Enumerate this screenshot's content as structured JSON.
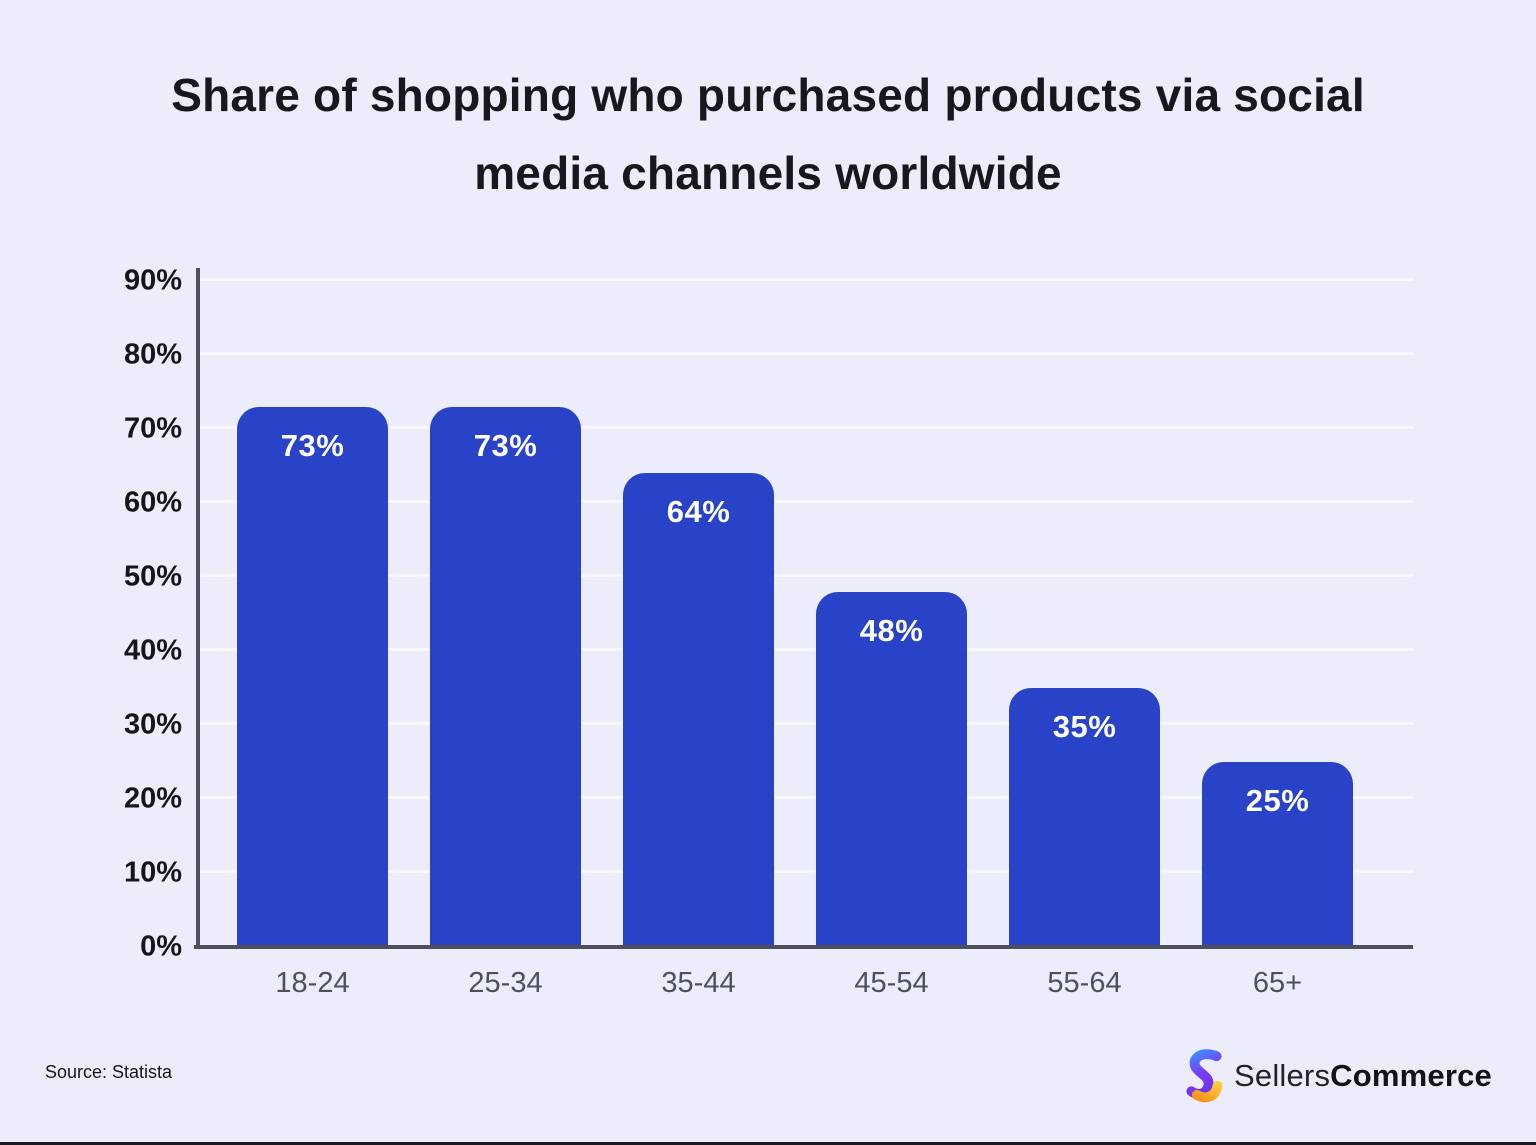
{
  "header": {
    "title_line1": "Share of shopping who purchased products via social",
    "title_line2": "media channels worldwide"
  },
  "chart_data": {
    "type": "bar",
    "title": "Share of shopping who purchased products via social media channels worldwide",
    "categories": [
      "18-24",
      "25-34",
      "35-44",
      "45-54",
      "55-64",
      "65+"
    ],
    "values": [
      73,
      73,
      64,
      48,
      35,
      25
    ],
    "value_labels": [
      "73%",
      "73%",
      "64%",
      "48%",
      "35%",
      "25%"
    ],
    "xlabel": "",
    "ylabel": "",
    "ylim": [
      0,
      90
    ],
    "y_tick_step": 10,
    "y_tick_labels": [
      "0%",
      "10%",
      "20%",
      "30%",
      "40%",
      "50%",
      "60%",
      "70%",
      "80%",
      "90%"
    ],
    "grid": "horizontal",
    "legend": "none",
    "bar_color": "#2843C8",
    "bar_label_color": "#FFFFFF",
    "gridline_color": "#F8F7FD",
    "axis_color": "#4D505C"
  },
  "footer": {
    "source": "Source: Statista",
    "logo_text_regular": "Sellers",
    "logo_text_bold": "Commerce"
  },
  "colors": {
    "background": "#EDECFA",
    "title_text": "#17171E",
    "y_label_text": "#15151C",
    "x_label_text": "#4A5160",
    "logo_blue": "#3E8BFF",
    "logo_purple": "#7A3BF0",
    "logo_orange": "#F7941D",
    "logo_yellow": "#FFC83D"
  }
}
